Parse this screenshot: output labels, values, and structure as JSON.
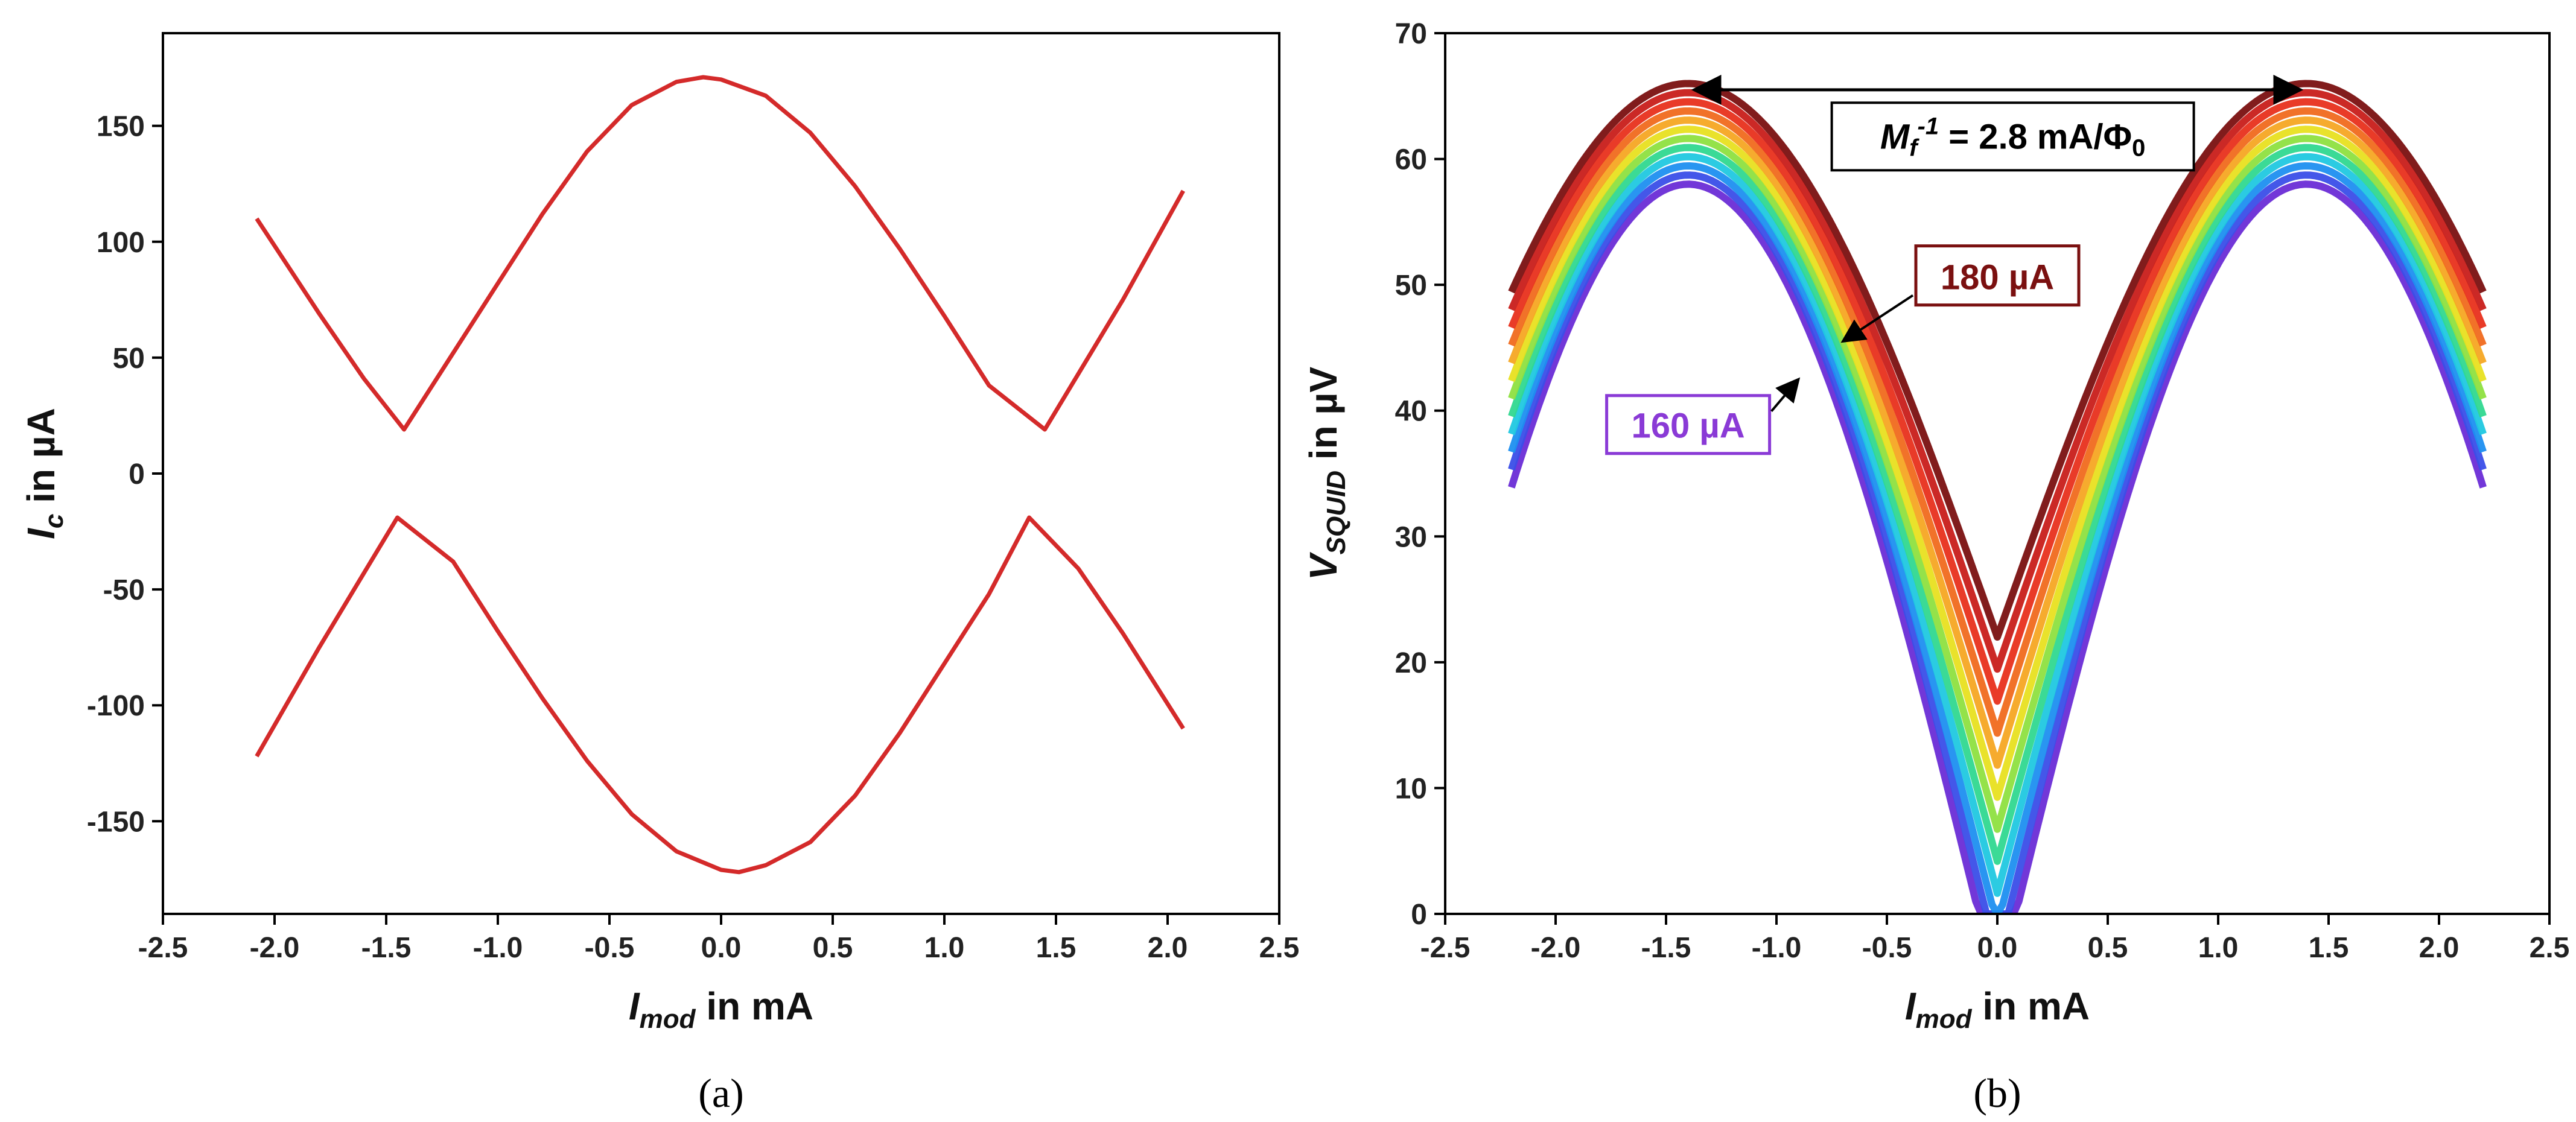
{
  "chart_data": [
    {
      "panel": "(a)",
      "type": "line",
      "xlabel": {
        "main": "I",
        "sub": "mod",
        "rest": " in mA"
      },
      "ylabel": {
        "main": "I",
        "sub": "c",
        "rest": " in µA"
      },
      "xlim": [
        -2.5,
        2.5
      ],
      "ylim": [
        -190,
        190
      ],
      "xticks": [
        "-2.5",
        "-2.0",
        "-1.5",
        "-1.0",
        "-0.5",
        "0.0",
        "0.5",
        "1.0",
        "1.5",
        "2.0",
        "2.5"
      ],
      "yticks": [
        "-150",
        "-100",
        "-50",
        "0",
        "50",
        "100",
        "150"
      ],
      "grid": false,
      "color": "#d42a2a",
      "series": [
        {
          "x": [
            -2.08,
            -1.8,
            -1.6,
            -1.42,
            -1.2,
            -1.0,
            -0.8,
            -0.6,
            -0.4,
            -0.2,
            -0.08,
            0.0,
            0.2,
            0.4,
            0.6,
            0.8,
            1.0,
            1.2,
            1.45,
            1.6,
            1.8,
            2.07
          ],
          "y": [
            110,
            69,
            41,
            19,
            52,
            82,
            112,
            139,
            159,
            169,
            171,
            170,
            163,
            147,
            124,
            97,
            68,
            38,
            19,
            43,
            75,
            122
          ]
        },
        {
          "x": [
            -2.08,
            -1.8,
            -1.6,
            -1.45,
            -1.2,
            -1.0,
            -0.8,
            -0.6,
            -0.4,
            -0.2,
            0.0,
            0.08,
            0.2,
            0.4,
            0.6,
            0.8,
            1.0,
            1.2,
            1.38,
            1.6,
            1.8,
            2.07
          ],
          "y": [
            -122,
            -75,
            -43,
            -19,
            -38,
            -68,
            -97,
            -124,
            -147,
            -163,
            -171,
            -172,
            -169,
            -159,
            -139,
            -112,
            -82,
            -52,
            -19,
            -41,
            -69,
            -110
          ]
        }
      ]
    },
    {
      "panel": "(b)",
      "type": "line",
      "xlabel": {
        "main": "I",
        "sub": "mod",
        "rest": " in mA"
      },
      "ylabel": {
        "main": "V",
        "sub": "SQUID",
        "rest": " in µV"
      },
      "xlim": [
        -2.5,
        2.5
      ],
      "ylim": [
        0,
        70
      ],
      "xticks": [
        "-2.5",
        "-2.0",
        "-1.5",
        "-1.0",
        "-0.5",
        "0.0",
        "0.5",
        "1.0",
        "1.5",
        "2.0",
        "2.5"
      ],
      "yticks": [
        "0",
        "10",
        "20",
        "30",
        "40",
        "50",
        "60",
        "70"
      ],
      "grid": false,
      "series_count": 12,
      "bias_range_uA": [
        160,
        180
      ],
      "colors_low_to_high": [
        "#6a2cd6",
        "#3a4ee8",
        "#1e8ff0",
        "#20c8e0",
        "#30d890",
        "#8ee040",
        "#e8e020",
        "#f5a623",
        "#f06a1e",
        "#e8301c",
        "#c81e1a",
        "#7a1010"
      ],
      "curve_params": {
        "x_range": [
          -2.2,
          2.2
        ],
        "period_mA": 2.8,
        "peak_x_mA": -1.4,
        "amplitude_low": 64,
        "amplitude_high": 44,
        "offset_low": -6,
        "offset_high": 22
      },
      "annotations": {
        "period_label": {
          "main": "M",
          "sub": "f",
          "sup": "-1",
          "rest": " = 2.8 mA/Φ",
          "sub2": "0"
        },
        "high_bias_label": "180 µA",
        "low_bias_label": "160 µA",
        "period_arrow_x": [
          -1.4,
          1.4
        ],
        "period_arrow_y": 65.5,
        "high_arrow_target": [
          -0.7,
          45.5
        ],
        "low_arrow_target": [
          -0.9,
          42.5
        ]
      }
    }
  ]
}
